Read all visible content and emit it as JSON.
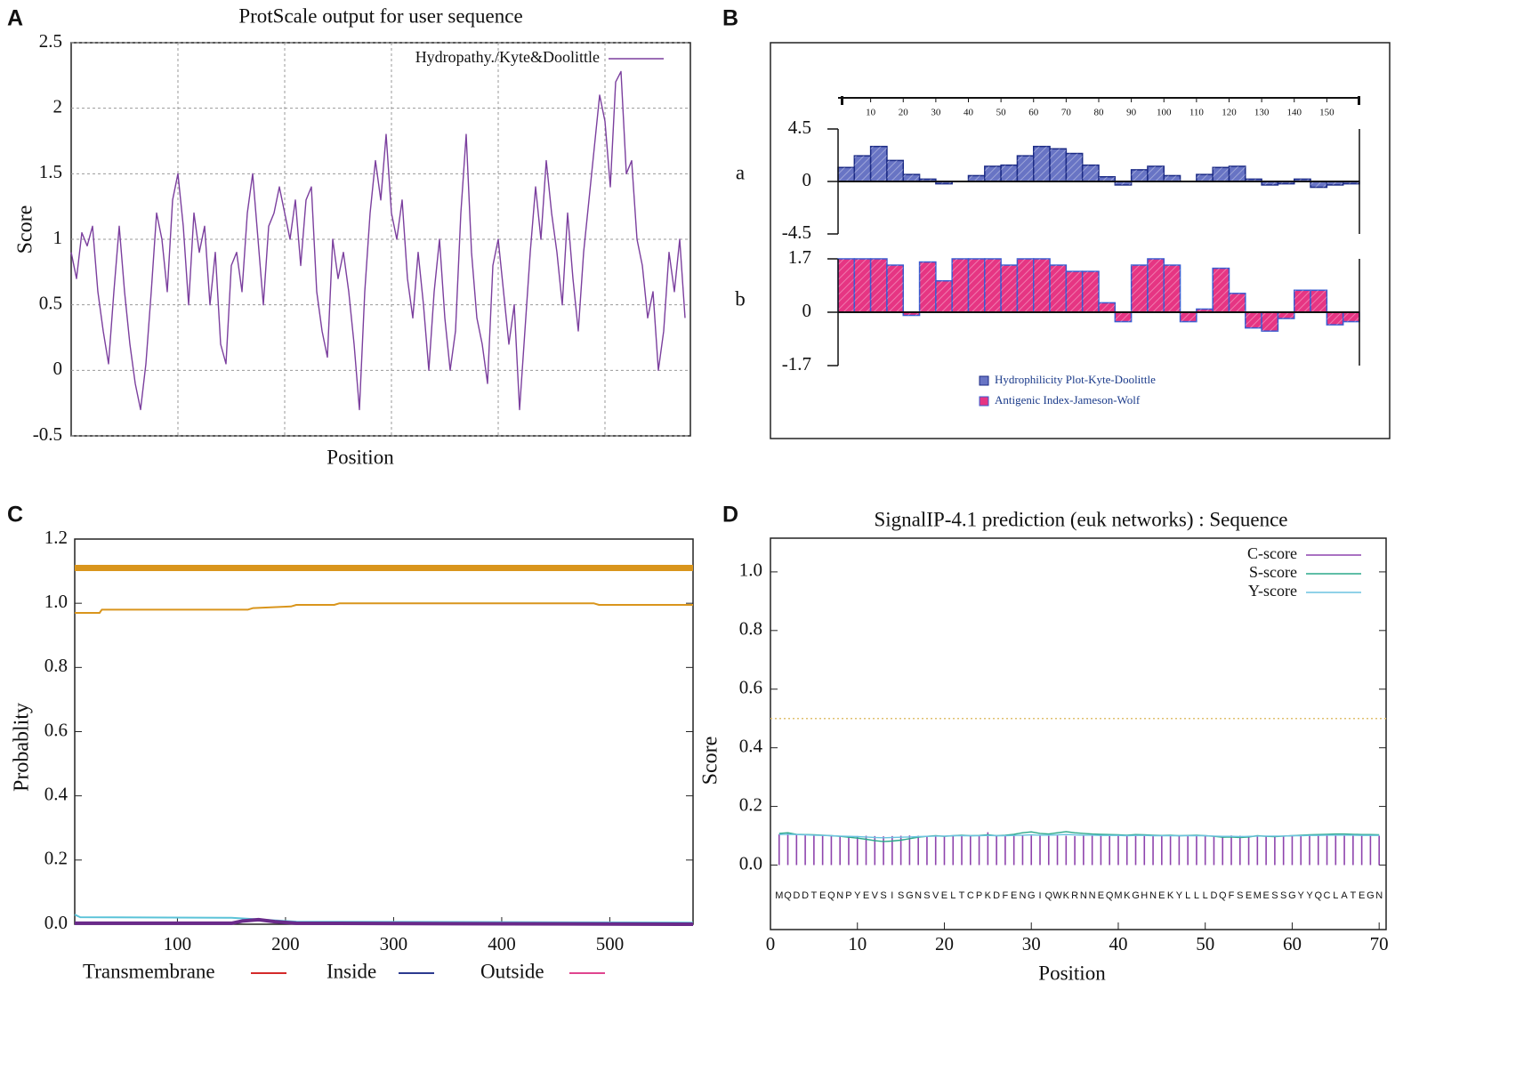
{
  "chart_data": [
    {
      "type": "line",
      "panel": "A",
      "title": "ProtScale output for user sequence",
      "x_label": "Position",
      "y_label": "Score",
      "xlim": [
        0,
        580
      ],
      "ylim": [
        -0.5,
        2.5
      ],
      "yticks": [
        -0.5,
        0,
        0.5,
        1,
        1.5,
        2,
        2.5
      ],
      "xticks": [
        100,
        200,
        300,
        400,
        500
      ],
      "xtick_labels": false,
      "grid": true,
      "legend": "upper right",
      "series": [
        {
          "name": "Hydropathy./Kyte&Doolittle",
          "color": "#7b3f9e",
          "x": [
            0,
            5,
            10,
            15,
            20,
            25,
            30,
            35,
            40,
            45,
            50,
            55,
            60,
            65,
            70,
            75,
            80,
            85,
            90,
            95,
            100,
            105,
            110,
            115,
            120,
            125,
            130,
            135,
            140,
            145,
            150,
            155,
            160,
            165,
            170,
            175,
            180,
            185,
            190,
            195,
            200,
            205,
            210,
            215,
            220,
            225,
            230,
            235,
            240,
            245,
            250,
            255,
            260,
            265,
            270,
            275,
            280,
            285,
            290,
            295,
            300,
            305,
            310,
            315,
            320,
            325,
            330,
            335,
            340,
            345,
            350,
            355,
            360,
            365,
            370,
            375,
            380,
            385,
            390,
            395,
            400,
            405,
            410,
            415,
            420,
            425,
            430,
            435,
            440,
            445,
            450,
            455,
            460,
            465,
            470,
            475,
            480,
            485,
            490,
            495,
            500,
            505,
            510,
            515,
            520,
            525,
            530,
            535,
            540,
            545,
            550,
            555,
            560,
            565,
            570,
            575
          ],
          "values": [
            0.9,
            0.7,
            1.05,
            0.95,
            1.1,
            0.6,
            0.3,
            0.05,
            0.6,
            1.1,
            0.6,
            0.2,
            -0.1,
            -0.3,
            0.05,
            0.6,
            1.2,
            1.0,
            0.6,
            1.3,
            1.5,
            1.1,
            0.5,
            1.2,
            0.9,
            1.1,
            0.5,
            0.9,
            0.2,
            0.05,
            0.8,
            0.9,
            0.6,
            1.2,
            1.5,
            1.0,
            0.5,
            1.1,
            1.2,
            1.4,
            1.2,
            1.0,
            1.3,
            0.8,
            1.3,
            1.4,
            0.6,
            0.3,
            0.1,
            1.0,
            0.7,
            0.9,
            0.6,
            0.2,
            -0.3,
            0.6,
            1.2,
            1.6,
            1.3,
            1.8,
            1.2,
            1.0,
            1.3,
            0.7,
            0.4,
            0.9,
            0.5,
            0.0,
            0.6,
            1.0,
            0.4,
            0.0,
            0.3,
            1.2,
            1.8,
            0.9,
            0.4,
            0.2,
            -0.1,
            0.8,
            1.0,
            0.6,
            0.2,
            0.5,
            -0.3,
            0.3,
            0.9,
            1.4,
            1.0,
            1.6,
            1.2,
            0.9,
            0.5,
            1.2,
            0.7,
            0.3,
            0.9,
            1.3,
            1.7,
            2.1,
            1.9,
            1.4,
            2.2,
            2.28,
            1.5,
            1.6,
            1.0,
            0.8,
            0.4,
            0.6,
            0.0,
            0.3,
            0.9,
            0.6,
            1.0,
            0.4
          ]
        }
      ]
    },
    {
      "type": "area",
      "panel": "B",
      "label": "a",
      "xlim": [
        0,
        160
      ],
      "xticks": [
        10,
        20,
        30,
        40,
        50,
        60,
        70,
        80,
        90,
        100,
        110,
        120,
        130,
        140,
        150
      ],
      "ylim": [
        -4.5,
        4.5
      ],
      "yticks": [
        4.5,
        0,
        -4.5
      ],
      "series": [
        {
          "name": "Hydrophilicity Plot-Kyte-Doolittle",
          "color": "#6874c4",
          "edge": "#1b2a85",
          "x": [
            0,
            5,
            10,
            15,
            20,
            25,
            30,
            35,
            40,
            45,
            50,
            55,
            60,
            65,
            70,
            75,
            80,
            85,
            90,
            95,
            100,
            105,
            110,
            115,
            120,
            125,
            130,
            135,
            140,
            145,
            150,
            155
          ],
          "values": [
            1.2,
            2.2,
            3.0,
            1.8,
            0.6,
            0.2,
            -0.2,
            0,
            0.5,
            1.3,
            1.4,
            2.2,
            3.0,
            2.8,
            2.4,
            1.4,
            0.4,
            -0.3,
            1.0,
            1.3,
            0.5,
            0,
            0.6,
            1.2,
            1.3,
            0.2,
            -0.3,
            -0.2,
            0.2,
            -0.5,
            -0.3,
            -0.2
          ]
        }
      ]
    },
    {
      "type": "area",
      "label": "b",
      "xlim": [
        0,
        160
      ],
      "ylim": [
        -1.7,
        1.7
      ],
      "yticks": [
        1.7,
        0,
        -1.7
      ],
      "series": [
        {
          "name": "Antigenic Index-Jameson-Wolf",
          "color": "#e63583",
          "edge": "#3a5bd0",
          "x": [
            0,
            5,
            10,
            15,
            20,
            25,
            30,
            35,
            40,
            45,
            50,
            55,
            60,
            65,
            70,
            75,
            80,
            85,
            90,
            95,
            100,
            105,
            110,
            115,
            120,
            125,
            130,
            135,
            140,
            145,
            150,
            155
          ],
          "values": [
            1.7,
            1.7,
            1.7,
            1.5,
            -0.1,
            1.6,
            1.0,
            1.7,
            1.7,
            1.7,
            1.5,
            1.7,
            1.7,
            1.5,
            1.3,
            1.3,
            0.3,
            -0.3,
            1.5,
            1.7,
            1.5,
            -0.3,
            0.1,
            1.4,
            0.6,
            -0.5,
            -0.6,
            -0.2,
            0.7,
            0.7,
            -0.4,
            -0.3
          ]
        }
      ]
    },
    {
      "type": "line",
      "panel": "C",
      "y_label": "Probablity",
      "xlim": [
        5,
        577
      ],
      "ylim": [
        0,
        1.2
      ],
      "yticks": [
        {
          "value": 0,
          "label": "0.0"
        },
        0.2,
        0.4,
        0.6,
        0.8,
        {
          "value": 1,
          "label": "1.0"
        },
        1.2
      ],
      "xticks": [
        100,
        200,
        300,
        400,
        500
      ],
      "legend": "bottom",
      "legend_items": [
        {
          "name": "Transmembrane",
          "color": "#d42a2a"
        },
        {
          "name": "Inside",
          "color": "#2c3a8f"
        },
        {
          "name": "Outside",
          "color": "#e0458f"
        }
      ],
      "series": [
        {
          "color": "#d9951c",
          "width": 7,
          "x": [
            5,
            577
          ],
          "values": [
            1.11,
            1.11
          ]
        },
        {
          "color": "#d9951c",
          "width": 2,
          "x": [
            5,
            28,
            30,
            165,
            170,
            205,
            210,
            245,
            250,
            485,
            490,
            577
          ],
          "values": [
            0.97,
            0.97,
            0.98,
            0.98,
            0.985,
            0.99,
            0.995,
            0.995,
            1.0,
            1.0,
            0.995,
            0.995
          ]
        },
        {
          "color": "#5bc3d8",
          "width": 2,
          "x": [
            5,
            10,
            150,
            210,
            577
          ],
          "values": [
            0.03,
            0.022,
            0.02,
            0.008,
            0.005
          ]
        },
        {
          "color": "#6a2a8a",
          "width": 4,
          "x": [
            5,
            150,
            160,
            175,
            190,
            210,
            577
          ],
          "values": [
            0.003,
            0.003,
            0.01,
            0.014,
            0.008,
            0.003,
            0.0
          ]
        }
      ]
    },
    {
      "type": "line",
      "panel": "D",
      "title": "SignalIP-4.1 prediction (euk networks) : Sequence",
      "x_label": "Position",
      "y_label": "Score",
      "xlim": [
        0,
        70.8
      ],
      "ylim": [
        -0.22,
        1.115
      ],
      "xticks": [
        0,
        10,
        20,
        30,
        40,
        50,
        60,
        70
      ],
      "yticks": [
        {
          "value": 0,
          "label": "0.0"
        },
        0.2,
        0.4,
        0.6,
        0.8,
        {
          "value": 1,
          "label": "1.0"
        }
      ],
      "threshold": 0.5,
      "threshold_color": "#e0c070",
      "legend": "upper right",
      "categories": [
        "M",
        "Q",
        "D",
        "D",
        "T",
        "E",
        "Q",
        "N",
        "P",
        "Y",
        "E",
        "V",
        "S",
        "I",
        "S",
        "G",
        "N",
        "S",
        "V",
        "E",
        "L",
        "T",
        "C",
        "P",
        "K",
        "D",
        "F",
        "E",
        "N",
        "G",
        "I",
        "Q",
        "W",
        "K",
        "R",
        "N",
        "N",
        "E",
        "Q",
        "M",
        "K",
        "G",
        "H",
        "N",
        "E",
        "K",
        "Y",
        "L",
        "L",
        "L",
        "D",
        "Q",
        "F",
        "S",
        "E",
        "M",
        "E",
        "S",
        "S",
        "G",
        "Y",
        "Y",
        "Q",
        "C",
        "L",
        "A",
        "T",
        "E",
        "G",
        "N"
      ],
      "x": [
        1,
        2,
        3,
        4,
        5,
        6,
        7,
        8,
        9,
        10,
        11,
        12,
        13,
        14,
        15,
        16,
        17,
        18,
        19,
        20,
        21,
        22,
        23,
        24,
        25,
        26,
        27,
        28,
        29,
        30,
        31,
        32,
        33,
        34,
        35,
        36,
        37,
        38,
        39,
        40,
        41,
        42,
        43,
        44,
        45,
        46,
        47,
        48,
        49,
        50,
        51,
        52,
        53,
        54,
        55,
        56,
        57,
        58,
        59,
        60,
        61,
        62,
        63,
        64,
        65,
        66,
        67,
        68,
        69,
        70
      ],
      "series": [
        {
          "name": "C-score",
          "color": "#8e44ad",
          "style": "stems",
          "values": [
            0.105,
            0.108,
            0.104,
            0.102,
            0.103,
            0.101,
            0.1,
            0.1,
            0.098,
            0.099,
            0.1,
            0.099,
            0.098,
            0.099,
            0.1,
            0.101,
            0.1,
            0.099,
            0.098,
            0.1,
            0.101,
            0.1,
            0.099,
            0.102,
            0.112,
            0.1,
            0.099,
            0.101,
            0.102,
            0.101,
            0.1,
            0.1,
            0.101,
            0.1,
            0.099,
            0.1,
            0.101,
            0.1,
            0.099,
            0.1,
            0.1,
            0.101,
            0.1,
            0.1,
            0.099,
            0.1,
            0.101,
            0.1,
            0.1,
            0.099,
            0.1,
            0.1,
            0.101,
            0.1,
            0.099,
            0.1,
            0.1,
            0.099,
            0.1,
            0.1,
            0.101,
            0.1,
            0.1,
            0.101,
            0.102,
            0.101,
            0.1,
            0.101,
            0.1,
            0.1
          ]
        },
        {
          "name": "S-score",
          "color": "#2aa88a",
          "values": [
            0.108,
            0.11,
            0.105,
            0.104,
            0.103,
            0.102,
            0.1,
            0.098,
            0.095,
            0.092,
            0.088,
            0.083,
            0.08,
            0.082,
            0.085,
            0.09,
            0.095,
            0.098,
            0.1,
            0.098,
            0.1,
            0.102,
            0.1,
            0.101,
            0.103,
            0.1,
            0.102,
            0.105,
            0.11,
            0.113,
            0.108,
            0.106,
            0.11,
            0.114,
            0.11,
            0.108,
            0.106,
            0.105,
            0.104,
            0.103,
            0.102,
            0.104,
            0.103,
            0.102,
            0.101,
            0.102,
            0.1,
            0.101,
            0.102,
            0.1,
            0.098,
            0.095,
            0.096,
            0.094,
            0.096,
            0.1,
            0.098,
            0.097,
            0.099,
            0.1,
            0.102,
            0.103,
            0.104,
            0.105,
            0.106,
            0.106,
            0.105,
            0.104,
            0.104,
            0.103
          ]
        },
        {
          "name": "Y-score",
          "color": "#6cc3e0",
          "values": [
            0.104,
            0.105,
            0.104,
            0.103,
            0.102,
            0.101,
            0.1,
            0.099,
            0.098,
            0.097,
            0.096,
            0.094,
            0.093,
            0.094,
            0.095,
            0.096,
            0.097,
            0.098,
            0.099,
            0.099,
            0.1,
            0.1,
            0.1,
            0.1,
            0.101,
            0.1,
            0.1,
            0.101,
            0.102,
            0.103,
            0.102,
            0.102,
            0.103,
            0.104,
            0.103,
            0.102,
            0.102,
            0.101,
            0.101,
            0.101,
            0.1,
            0.101,
            0.101,
            0.1,
            0.1,
            0.1,
            0.1,
            0.1,
            0.1,
            0.1,
            0.099,
            0.098,
            0.098,
            0.097,
            0.098,
            0.099,
            0.099,
            0.099,
            0.099,
            0.1,
            0.1,
            0.101,
            0.101,
            0.102,
            0.102,
            0.102,
            0.102,
            0.101,
            0.101,
            0.101
          ]
        }
      ]
    }
  ]
}
